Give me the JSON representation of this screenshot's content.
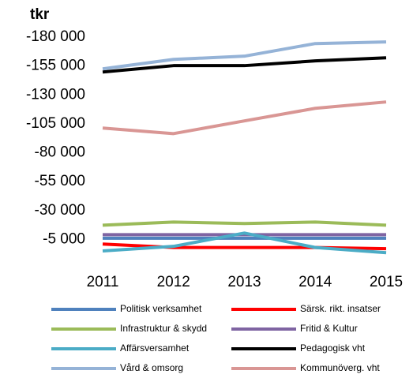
{
  "chart_data": {
    "type": "line",
    "title": "tkr",
    "categories": [
      "2011",
      "2012",
      "2013",
      "2014",
      "2015"
    ],
    "ylim": [
      20000,
      -180000
    ],
    "yticks": [
      {
        "value": -180000,
        "label": "-180 000"
      },
      {
        "value": -155000,
        "label": "-155 000"
      },
      {
        "value": -130000,
        "label": "-130 000"
      },
      {
        "value": -105000,
        "label": "-105 000"
      },
      {
        "value": -80000,
        "label": "-80 000"
      },
      {
        "value": -55000,
        "label": "-55 000"
      },
      {
        "value": -30000,
        "label": "-30 000"
      },
      {
        "value": -5000,
        "label": "-5 000"
      }
    ],
    "grid": false,
    "legend": "bottom",
    "series": [
      {
        "name": "Politisk verksamhet",
        "color": "#4f81bd",
        "values": [
          -6000,
          -6000,
          -6000,
          -6000,
          -6000
        ]
      },
      {
        "name": "Särsk. rikt. insatser",
        "color": "#ff0000",
        "values": [
          -1000,
          2000,
          2000,
          2000,
          3000
        ]
      },
      {
        "name": "Infrastruktur & skydd",
        "color": "#9bbb59",
        "values": [
          -17300,
          -20000,
          -18700,
          -20000,
          -17300
        ]
      },
      {
        "name": "Fritid & Kultur",
        "color": "#7f64a2",
        "values": [
          -9100,
          -9100,
          -9100,
          -9100,
          -9100
        ]
      },
      {
        "name": "Affärsversamhet",
        "color": "#4bacc6",
        "values": [
          5000,
          1000,
          -10500,
          2000,
          6500
        ]
      },
      {
        "name": "Pedagogisk vht",
        "color": "#000000",
        "values": [
          -149800,
          -155300,
          -155300,
          -159400,
          -162100
        ]
      },
      {
        "name": "Vård & omsorg",
        "color": "#95b3d7",
        "values": [
          -152500,
          -160700,
          -163500,
          -174400,
          -175800
        ]
      },
      {
        "name": "Kommunöverg. vht",
        "color": "#d99694",
        "values": [
          -101300,
          -96500,
          -107500,
          -118400,
          -123900
        ]
      }
    ]
  }
}
